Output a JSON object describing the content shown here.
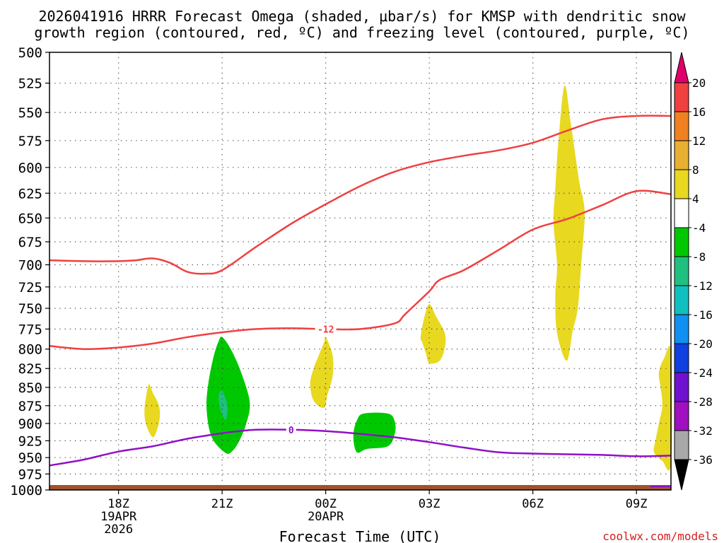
{
  "chart_data": {
    "type": "contour-time-height",
    "title_line1": "2026041916 HRRR Forecast Omega (shaded, μbar/s) for KMSP with dendritic snow",
    "title_line2": "growth region (contoured, red, ºC) and freezing level (contoured, purple, ºC)",
    "xlabel": "Forecast Time (UTC)",
    "credit": "coolwx.com/models",
    "x_range_hours": [
      0,
      18
    ],
    "y_range_hpa": [
      1000,
      500
    ],
    "y_ticks": [
      "500",
      "525",
      "550",
      "575",
      "600",
      "625",
      "650",
      "675",
      "700",
      "725",
      "750",
      "775",
      "800",
      "825",
      "850",
      "875",
      "900",
      "925",
      "950",
      "975",
      "1000"
    ],
    "x_ticks": [
      {
        "hour": 2,
        "label": "18Z",
        "date": "19APR",
        "year": "2026"
      },
      {
        "hour": 5,
        "label": "21Z"
      },
      {
        "hour": 8,
        "label": "00Z",
        "date": "20APR"
      },
      {
        "hour": 11,
        "label": "03Z"
      },
      {
        "hour": 14,
        "label": "06Z"
      },
      {
        "hour": 17,
        "label": "09Z"
      }
    ],
    "colorbar": {
      "labels": [
        "20",
        "16",
        "12",
        "8",
        "4",
        "-4",
        "-8",
        "-12",
        "-16",
        "-20",
        "-24",
        "-28",
        "-32",
        "-36"
      ],
      "colors": [
        "#e0006a",
        "#f04040",
        "#f08020",
        "#e8b030",
        "#e8d820",
        "#ffffff",
        "#00c800",
        "#20c080",
        "#10c0c0",
        "#1090f0",
        "#1040e0",
        "#7010d0",
        "#a010c0",
        "#a8a8a8",
        "#000000"
      ]
    },
    "contours": [
      {
        "name": "dgz-upper",
        "label": "",
        "color": "#f04040",
        "hours": [
          0,
          1,
          2,
          2.5,
          3,
          3.5,
          4,
          4.5,
          5,
          6,
          7,
          8,
          9,
          10,
          11,
          12,
          13,
          14,
          15,
          16,
          17,
          18
        ],
        "pressure": [
          695,
          696,
          696,
          695,
          693,
          698,
          708,
          710,
          706,
          680,
          656,
          636,
          618,
          604,
          595,
          589,
          584,
          577,
          566,
          556,
          553,
          553
        ]
      },
      {
        "name": "dgz-lower",
        "label": "-12",
        "label_hour": 8,
        "color": "#f04040",
        "hours": [
          0,
          1,
          2,
          3,
          4,
          5,
          6,
          7,
          8,
          9,
          10,
          10.3,
          11,
          11.3,
          12,
          13,
          14,
          15,
          16,
          17,
          18
        ],
        "pressure": [
          796,
          800,
          798,
          793,
          785,
          779,
          775,
          774,
          775,
          775,
          768,
          757,
          730,
          717,
          706,
          684,
          662,
          651,
          637,
          623,
          626
        ]
      },
      {
        "name": "freezing-level",
        "label": "0",
        "label_hour": 7,
        "color": "#9010c8",
        "hours": [
          0,
          1,
          2,
          3,
          4,
          5,
          5.5,
          6,
          7,
          8,
          9,
          10,
          11,
          12,
          13,
          14,
          15,
          16,
          17,
          18
        ],
        "pressure": [
          962,
          953,
          941,
          933,
          922,
          914,
          911,
          909,
          909,
          911,
          915,
          920,
          927,
          935,
          942,
          944,
          945,
          946,
          948,
          947
        ]
      }
    ],
    "shaded_regions": [
      {
        "name": "omega-plus4-a",
        "value_range": "4 to 8",
        "color": "#e8d820",
        "hours": [
          2.88,
          3.0,
          3.15,
          3.2,
          3.15,
          3.0,
          2.8,
          2.75,
          2.8
        ],
        "pressure": [
          846,
          858,
          872,
          886,
          903,
          920,
          902,
          882,
          862
        ]
      },
      {
        "name": "omega-minus4-a",
        "value_range": "-8 to -4",
        "color": "#00c800",
        "hours": [
          5.0,
          5.25,
          5.55,
          5.8,
          5.7,
          5.5,
          5.3,
          5.1,
          4.7,
          4.55,
          4.6,
          4.75,
          4.9
        ],
        "pressure": [
          785,
          800,
          830,
          870,
          900,
          925,
          940,
          943,
          920,
          880,
          845,
          810,
          790
        ]
      },
      {
        "name": "omega-minus8-a",
        "value_range": "-12 to -8",
        "color": "#20c080",
        "hours": [
          5.0,
          5.15,
          5.1,
          4.95,
          4.9
        ],
        "pressure": [
          855,
          875,
          895,
          880,
          862
        ]
      },
      {
        "name": "omega-plus4-b",
        "value_range": "4 to 8",
        "color": "#e8d820",
        "hours": [
          8.0,
          8.2,
          8.2,
          8.05,
          7.95,
          7.65,
          7.55,
          7.65,
          7.8,
          7.95
        ],
        "pressure": [
          785,
          808,
          835,
          860,
          878,
          868,
          845,
          825,
          808,
          792
        ]
      },
      {
        "name": "omega-minus4-b",
        "value_range": "-8 to -4",
        "color": "#00c800",
        "hours": [
          9.1,
          9.8,
          10.0,
          10.0,
          9.8,
          9.2,
          8.9,
          8.8,
          8.9
        ],
        "pressure": [
          886,
          886,
          897,
          915,
          933,
          937,
          942,
          918,
          896
        ]
      },
      {
        "name": "omega-plus4-c",
        "value_range": "4 to 8",
        "color": "#e8d820",
        "hours": [
          11.0,
          11.2,
          11.45,
          11.45,
          11.3,
          11.0,
          10.9,
          10.8,
          10.75,
          10.85
        ],
        "pressure": [
          745,
          760,
          780,
          798,
          815,
          818,
          805,
          792,
          785,
          762
        ]
      },
      {
        "name": "omega-plus4-d",
        "value_range": "4 to 8",
        "color": "#e8d820",
        "hours": [
          14.92,
          15.1,
          15.35,
          15.45,
          15.5,
          15.4,
          15.3,
          15.15,
          14.98,
          14.7,
          14.65,
          14.7,
          14.6,
          14.65,
          14.75
        ],
        "pressure": [
          527,
          560,
          615,
          630,
          650,
          700,
          750,
          778,
          815,
          780,
          735,
          700,
          655,
          620,
          572
        ]
      },
      {
        "name": "omega-plus4-e",
        "value_range": "4 to 8",
        "color": "#e8d820",
        "hours": [
          18.0,
          17.8,
          17.65,
          17.7,
          17.75,
          17.65,
          17.55,
          17.5,
          17.6,
          17.75,
          18.0
        ],
        "pressure": [
          805,
          812,
          830,
          850,
          875,
          900,
          925,
          940,
          948,
          955,
          958
        ]
      }
    ]
  }
}
